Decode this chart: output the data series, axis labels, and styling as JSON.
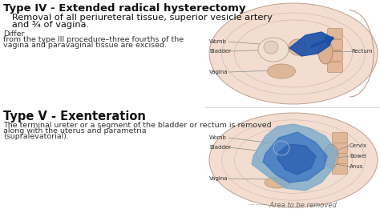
{
  "bg_color": "#ffffff",
  "title1": "Type IV - Extended radical hysterectomy",
  "subtitle1_line1": "   Removal of all periureteral tissue, superior vesicle artery",
  "subtitle1_line2": "   and ¾ of vagina.",
  "body1_line1": "Differ",
  "body1_line2": "from the type III procedure–three fourths of the",
  "body1_line3": "vagina and paravaginal tissue are excised.",
  "title2": "Type V - Exenteration",
  "body2_line1": "The terminal ureter or a segment of the bladder or rectum is removed",
  "body2_line2": "along with the uterus and parametria",
  "body2_line3": "(supralevatorial).",
  "legend_text": "········· Area to be removed",
  "title1_fontsize": 9.5,
  "title2_fontsize": 10.5,
  "subtitle_fontsize": 8.2,
  "body_fontsize": 6.8,
  "legend_fontsize": 6.0,
  "label_fontsize": 5.0,
  "title_color": "#111111",
  "body_color": "#333333",
  "label_color": "#333333",
  "line_color": "#888888",
  "skin_outer": "#f2ddd0",
  "skin_inner": "#e8c8b0",
  "skin_dark": "#d4a888",
  "spine_color": "#e0b898",
  "bladder_color": "#e8cdb8",
  "blue_dark": "#1a4faa",
  "blue_mid": "#2e6ac0",
  "blue_light": "#7aabcc",
  "blue_lighter": "#a8c8e0",
  "sep_color": "#cccccc"
}
